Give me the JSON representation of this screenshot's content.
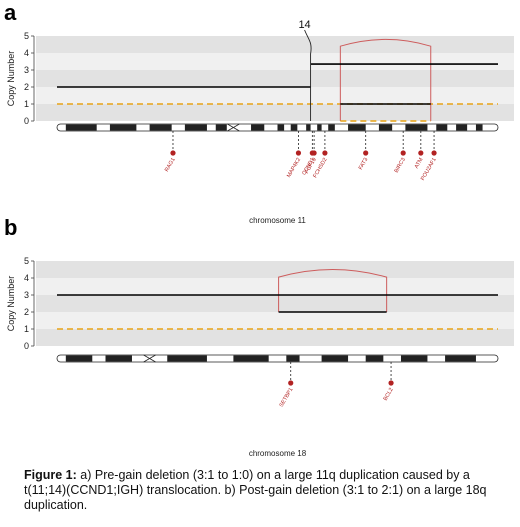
{
  "panels": [
    {
      "letter": "a",
      "ylabel": "Copy Number",
      "yticks": [
        "0",
        "1",
        "2",
        "3",
        "4",
        "5"
      ],
      "chromosome_label": "chromosome 11",
      "marker_label": "14",
      "genes": [
        "RAG1",
        "MAP4K2",
        "CCND1",
        "FGF19",
        "FCHSD2",
        "FAT3",
        "BIRC3",
        "ATM",
        "POU2AF1"
      ]
    },
    {
      "letter": "b",
      "ylabel": "Copy Number",
      "yticks": [
        "0",
        "1",
        "2",
        "3",
        "4",
        "5"
      ],
      "chromosome_label": "chromosome 18",
      "genes": [
        "SETBP1",
        "BCL2"
      ]
    }
  ],
  "caption": {
    "bold": "Figure 1:",
    "text": " a) Pre-gain deletion (3:1 to 1:0) on a large 11q duplication caused by a t(11;14)(CCND1;IGH) translocation. b) Post-gain deletion (3:1 to 2:1) on a large 18q duplication."
  },
  "colors": {
    "band_light": "#f0f0f0",
    "band_dark": "#e2e2e2",
    "segment": "#000000",
    "event": "#cd5c5c",
    "baseline": "#e8a317",
    "gene": "#b22222"
  },
  "chart_data": [
    {
      "type": "line",
      "title": "",
      "xlabel": "chromosome 11",
      "ylabel": "Copy Number",
      "ylim": [
        0,
        5
      ],
      "yticks": [
        0,
        1,
        2,
        3,
        4,
        5
      ],
      "segments": [
        {
          "name": "total copy number",
          "from": 0.0,
          "to": 0.575,
          "value": 2
        },
        {
          "name": "total copy number",
          "from": 0.575,
          "to": 1.0,
          "value": 3.35
        },
        {
          "name": "minor copy number",
          "from": 0.6425,
          "to": 0.8475,
          "value": 1.0
        }
      ],
      "baseline_dashed": {
        "from": 0.0,
        "to": 1.0,
        "value": 1
      },
      "event_box": {
        "from": 0.6425,
        "to": 0.8475,
        "low": 0,
        "high": 4.4,
        "arc_peak": 4.8
      },
      "translocation_marker": {
        "position": 0.575,
        "label": "14"
      },
      "genes": [
        {
          "name": "RAG1",
          "position": 0.263
        },
        {
          "name": "MAP4K2",
          "position": 0.5475
        },
        {
          "name": "CCND1",
          "position": 0.579
        },
        {
          "name": "FGF19",
          "position": 0.583
        },
        {
          "name": "FCHSD2",
          "position": 0.6075
        },
        {
          "name": "FAT3",
          "position": 0.7
        },
        {
          "name": "BIRC3",
          "position": 0.785
        },
        {
          "name": "ATM",
          "position": 0.825
        },
        {
          "name": "POU2AF1",
          "position": 0.855
        }
      ]
    },
    {
      "type": "line",
      "title": "",
      "xlabel": "chromosome 18",
      "ylabel": "Copy Number",
      "ylim": [
        0,
        5
      ],
      "yticks": [
        0,
        1,
        2,
        3,
        4,
        5
      ],
      "segments": [
        {
          "name": "total copy number",
          "from": 0.0,
          "to": 1.0,
          "value": 3
        },
        {
          "name": "minor copy number",
          "from": 0.5025,
          "to": 0.7475,
          "value": 2
        }
      ],
      "baseline_dashed": {
        "from": 0.0,
        "to": 1.0,
        "value": 1
      },
      "event_box": {
        "from": 0.5025,
        "to": 0.7475,
        "low": 2,
        "high": 4.05,
        "arc_peak": 4.5
      },
      "genes": [
        {
          "name": "SETBP1",
          "position": 0.53
        },
        {
          "name": "BCL2",
          "position": 0.7575
        }
      ]
    }
  ]
}
